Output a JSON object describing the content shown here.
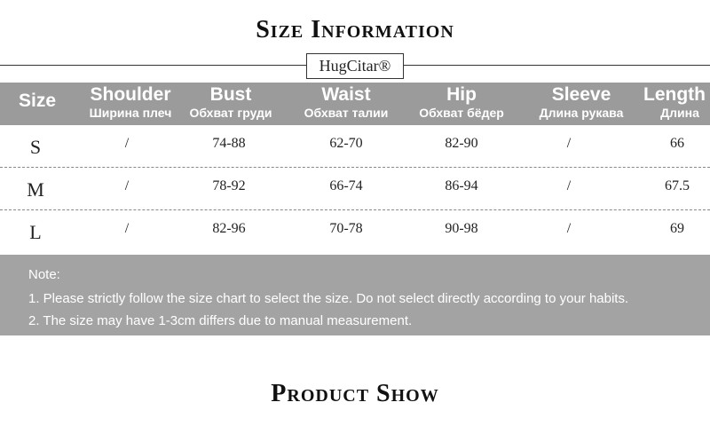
{
  "header": {
    "title": "Size Information",
    "brand": "HugCitar®"
  },
  "table": {
    "columns": [
      {
        "name": "Size",
        "sub": null
      },
      {
        "name": "Shoulder",
        "sub": "Ширина плеч"
      },
      {
        "name": "Bust",
        "sub": "Обхват груди"
      },
      {
        "name": "Waist",
        "sub": "Обхват талии"
      },
      {
        "name": "Hip",
        "sub": "Обхват бёдер"
      },
      {
        "name": "Sleeve",
        "sub": "Длина рукава"
      },
      {
        "name": "Length",
        "sub": "Длина"
      }
    ],
    "rows": [
      [
        "S",
        "/",
        "74-88",
        "62-70",
        "82-90",
        "/",
        "66"
      ],
      [
        "M",
        "/",
        "78-92",
        "66-74",
        "86-94",
        "/",
        "67.5"
      ],
      [
        "L",
        "/",
        "82-96",
        "70-78",
        "90-98",
        "/",
        "69"
      ]
    ]
  },
  "note": {
    "heading": "Note:",
    "items": [
      "1. Please strictly follow the size chart to select the size. Do not select directly according to your habits.",
      "2. The size may have 1-3cm differs due to manual measurement."
    ]
  },
  "footer": {
    "title": "Product Show"
  }
}
